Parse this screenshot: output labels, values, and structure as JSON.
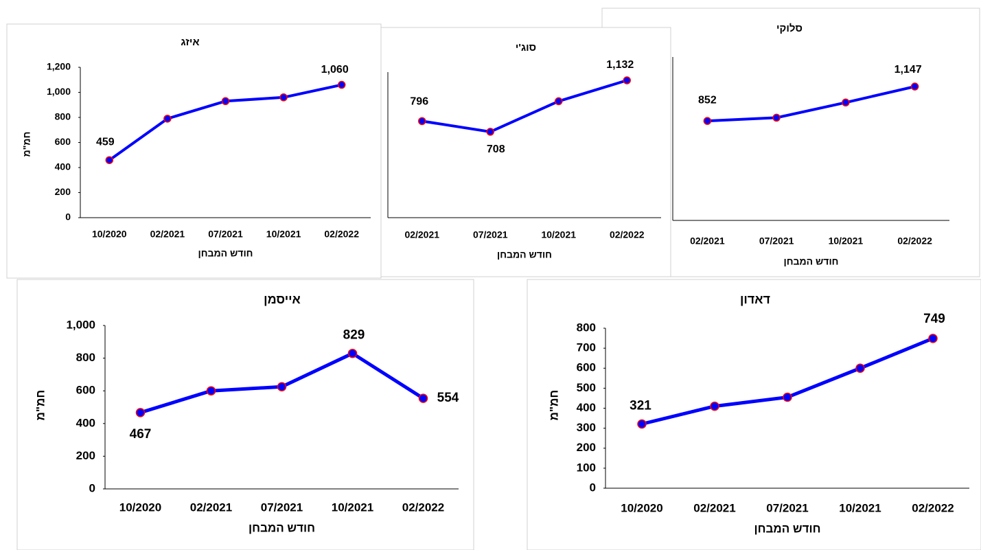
{
  "chart_data": [
    {
      "type": "line",
      "title": "איזג",
      "x_label": "חודש המבחן",
      "y_label": "חמ\"מ",
      "categories": [
        "10/2020",
        "02/2021",
        "07/2021",
        "10/2021",
        "02/2022"
      ],
      "values": [
        459,
        790,
        930,
        960,
        1060
      ],
      "value_labels": [
        "459",
        null,
        null,
        null,
        "1,060"
      ],
      "color": "#0000ff",
      "marker_edge": "#ff0000",
      "ylim": [
        0,
        1200
      ],
      "yticks": [
        0,
        200,
        400,
        600,
        800,
        {
          "value": 1000,
          "label": "1,000"
        },
        {
          "value": 1200,
          "label": "1,200"
        }
      ]
    },
    {
      "type": "line",
      "title": "סוג'י",
      "x_label": "חודש המבחן",
      "categories": [
        "02/2021",
        "07/2021",
        "10/2021",
        "02/2022"
      ],
      "values": [
        796,
        708,
        960,
        1132
      ],
      "value_labels": [
        "796",
        "708",
        null,
        "1,132"
      ],
      "color": "#0000ff",
      "marker_edge": "#ff0000",
      "ylim": [
        0,
        1200
      ]
    },
    {
      "type": "line",
      "title": "סלוקי",
      "x_label": "חודש המבחן",
      "categories": [
        "02/2021",
        "07/2021",
        "10/2021",
        "02/2022"
      ],
      "values": [
        852,
        880,
        1010,
        1147
      ],
      "value_labels": [
        "852",
        null,
        null,
        "1,147"
      ],
      "color": "#0000ff",
      "marker_edge": "#ff0000",
      "ylim": [
        0,
        1400
      ]
    },
    {
      "type": "line",
      "title": "אייסמן",
      "x_label": "חודש המבחן",
      "y_label": "חמ\"מ",
      "categories": [
        "10/2020",
        "02/2021",
        "07/2021",
        "10/2021",
        "02/2022"
      ],
      "values": [
        467,
        600,
        625,
        829,
        554
      ],
      "value_labels": [
        "467",
        null,
        null,
        "829",
        "554"
      ],
      "color": "#0000ff",
      "marker_edge": "#ff0000",
      "ylim": [
        0,
        1000
      ],
      "yticks": [
        0,
        200,
        400,
        600,
        800,
        {
          "value": 1000,
          "label": "1,000"
        }
      ]
    },
    {
      "type": "line",
      "title": "דאדון",
      "x_label": "חודש המבחן",
      "y_label": "חמ\"מ",
      "categories": [
        "10/2020",
        "02/2021",
        "07/2021",
        "10/2021",
        "02/2022"
      ],
      "values": [
        321,
        410,
        455,
        600,
        749
      ],
      "value_labels": [
        "321",
        null,
        null,
        null,
        "749"
      ],
      "color": "#0000ff",
      "marker_edge": "#ff0000",
      "ylim": [
        0,
        800
      ],
      "yticks": [
        0,
        100,
        200,
        300,
        400,
        500,
        600,
        700,
        800
      ]
    }
  ]
}
